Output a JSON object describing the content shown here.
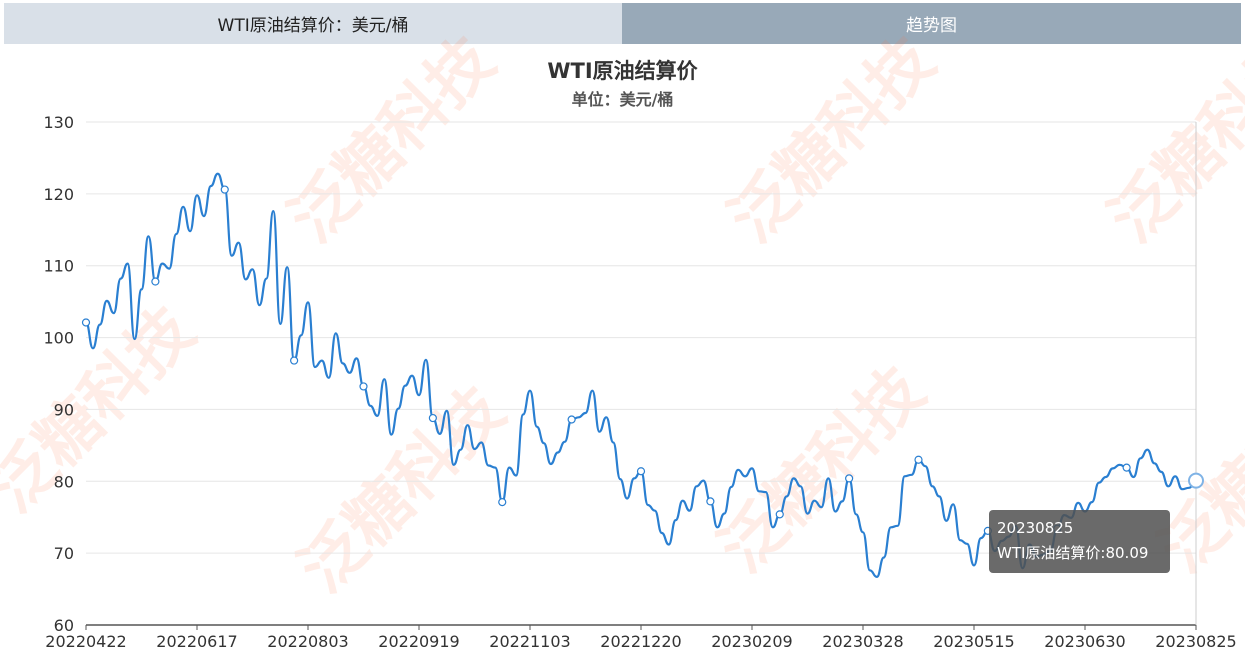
{
  "tabs": {
    "left": "WTI原油结算价：美元/桶",
    "right": "趋势图"
  },
  "watermark": "泛糖科技",
  "tooltip": {
    "date": "20230825",
    "label": "WTI原油结算价:80.09"
  },
  "colors": {
    "line": "#2a7fd1",
    "tab_left": "#d9e0e8",
    "tab_right": "#98a9b8"
  },
  "chart_data": {
    "type": "line",
    "title": "WTI原油结算价",
    "subtitle": "单位：美元/桶",
    "xlabel": "",
    "ylabel": "",
    "ylim": [
      60,
      130
    ],
    "y_ticks": [
      60,
      70,
      80,
      90,
      100,
      110,
      120,
      130
    ],
    "x_tick_labels": [
      "20220422",
      "20220617",
      "20220803",
      "20220919",
      "20221103",
      "20221220",
      "20230209",
      "20230328",
      "20230515",
      "20230630",
      "20230825"
    ],
    "grid": true,
    "series": [
      {
        "name": "WTI原油结算价",
        "values": [
          102.1,
          98.5,
          101.8,
          105.1,
          103.4,
          108.2,
          110.3,
          99.8,
          106.7,
          114.1,
          107.8,
          110.3,
          109.6,
          114.4,
          118.2,
          114.8,
          119.8,
          116.9,
          121.1,
          122.8,
          120.6,
          111.4,
          113.2,
          108.1,
          109.5,
          104.5,
          108.2,
          117.6,
          101.9,
          109.8,
          96.8,
          100.3,
          104.9,
          95.9,
          96.8,
          94.4,
          100.6,
          96.4,
          95.1,
          97.1,
          93.2,
          90.5,
          89.1,
          94.2,
          86.5,
          90.1,
          93.3,
          94.7,
          92.0,
          96.9,
          88.8,
          86.6,
          89.8,
          82.3,
          84.4,
          87.8,
          84.5,
          85.4,
          82.2,
          81.9,
          77.1,
          81.9,
          80.8,
          89.3,
          92.6,
          87.6,
          85.3,
          82.4,
          84.0,
          85.5,
          88.6,
          88.9,
          89.5,
          92.6,
          86.9,
          88.9,
          85.4,
          80.3,
          77.6,
          80.4,
          81.4,
          76.7,
          75.9,
          72.8,
          71.2,
          74.6,
          77.3,
          75.9,
          79.3,
          80.1,
          77.2,
          73.6,
          75.5,
          79.2,
          81.6,
          80.7,
          81.8,
          78.6,
          78.5,
          73.6,
          75.4,
          77.9,
          80.4,
          79.3,
          75.5,
          77.3,
          76.4,
          80.4,
          75.8,
          77.2,
          80.4,
          75.4,
          72.9,
          67.6,
          66.7,
          69.4,
          73.6,
          73.8,
          80.7,
          80.9,
          83.0,
          82.1,
          79.3,
          77.9,
          74.5,
          76.8,
          71.8,
          71.3,
          68.3,
          72.1,
          73.1,
          70.3,
          71.7,
          72.3,
          73.8,
          67.9,
          71.2,
          69.5,
          69.8,
          70.3,
          73.4,
          75.3,
          74.9,
          77.0,
          75.8,
          77.1,
          79.8,
          80.6,
          81.8,
          82.3,
          81.9,
          80.6,
          83.2,
          84.4,
          82.5,
          81.3,
          79.3,
          80.7,
          78.9,
          79.1,
          80.09
        ]
      }
    ]
  }
}
